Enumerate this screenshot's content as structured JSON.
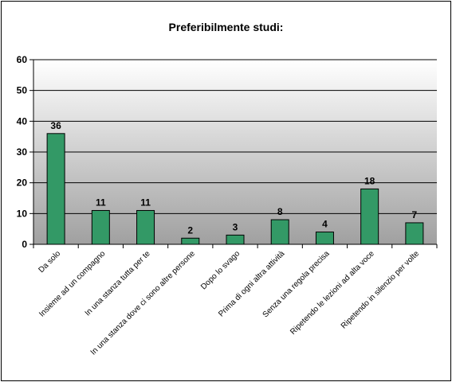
{
  "chart_data": {
    "type": "bar",
    "title": "Preferibilmente studi:",
    "xlabel": "",
    "ylabel": "",
    "categories": [
      "Da solo",
      "Insieme ad un compagno",
      "In una stanza tutta per te",
      "In una stanza dove ci sono altre persone",
      "Dopo lo svago",
      "Prima di ogni altra attività",
      "Senza una regola precisa",
      "Ripetendo le lezioni ad alta voce",
      "Ripetendo in silenzio per volte"
    ],
    "values": [
      36,
      11,
      11,
      2,
      3,
      8,
      4,
      18,
      7
    ],
    "data_labels": [
      "36",
      "11",
      "11",
      "2",
      "3",
      "8",
      "4",
      "18",
      "7"
    ],
    "ylim": [
      0,
      60
    ],
    "yticks": [
      0,
      10,
      20,
      30,
      40,
      50,
      60
    ],
    "grid": true,
    "legend": "none",
    "colors": {
      "bar_fill": "#339966",
      "bar_stroke": "#000000",
      "plot_bg_top": "#ffffff",
      "plot_bg_bottom": "#a0a0a0",
      "grid": "#000000"
    }
  }
}
